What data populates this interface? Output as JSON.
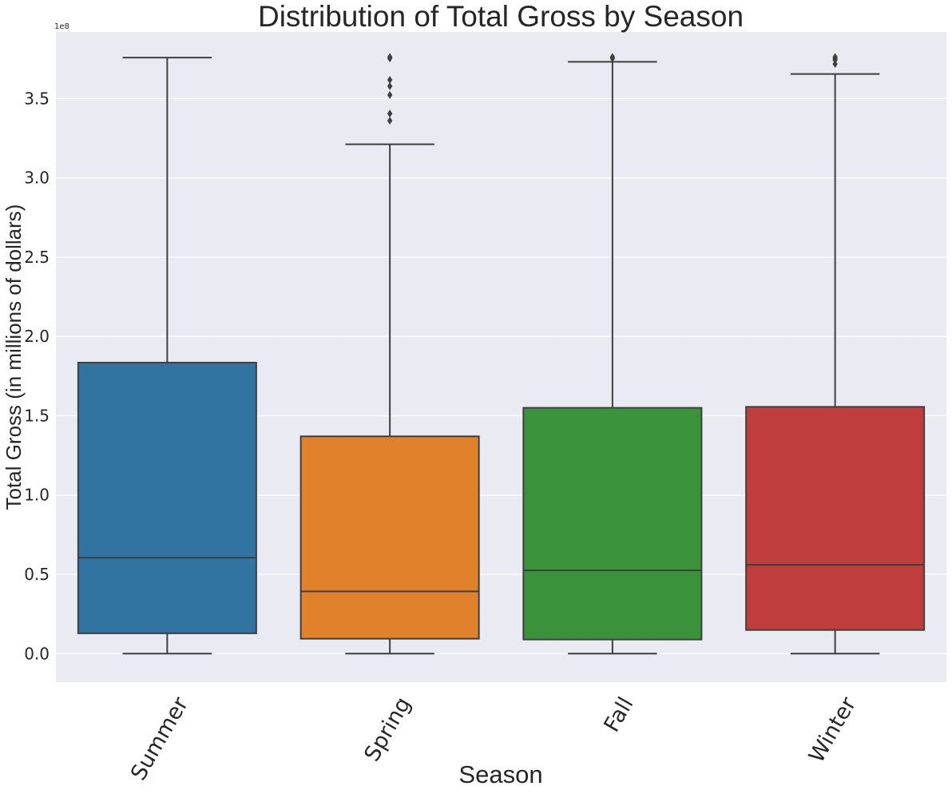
{
  "chart_data": {
    "type": "box",
    "title": "Distribution of Total Gross by Season",
    "xlabel": "Season",
    "ylabel": "Total Gross (in millions of dollars)",
    "y_offset_label": "1e8",
    "ylim": [
      -18000000,
      392000000
    ],
    "yticks": [
      0,
      50000000,
      100000000,
      150000000,
      200000000,
      250000000,
      300000000,
      350000000
    ],
    "ytick_labels": [
      "0.0",
      "0.5",
      "1.0",
      "1.5",
      "2.0",
      "2.5",
      "3.0",
      "3.5"
    ],
    "grid": true,
    "categories": [
      "Summer",
      "Spring",
      "Fall",
      "Winter"
    ],
    "boxes": [
      {
        "category": "Summer",
        "color": "#3274a1",
        "whisker_low": 0,
        "q1": 12800000,
        "median": 60500000,
        "q3": 183500000,
        "whisker_high": 375800000,
        "outliers": []
      },
      {
        "category": "Spring",
        "color": "#e1812c",
        "whisker_low": 0,
        "q1": 9400000,
        "median": 39200000,
        "q3": 137000000,
        "whisker_high": 321200000,
        "outliers": [
          336000000,
          340500000,
          352300000,
          357800000,
          361800000,
          375300000,
          376200000
        ]
      },
      {
        "category": "Fall",
        "color": "#3a923a",
        "whisker_low": 0,
        "q1": 8900000,
        "median": 52500000,
        "q3": 155000000,
        "whisker_high": 373200000,
        "outliers": [
          375300000,
          376200000
        ]
      },
      {
        "category": "Winter",
        "color": "#c03d3e",
        "whisker_low": 0,
        "q1": 14900000,
        "median": 56000000,
        "q3": 155600000,
        "whisker_high": 365500000,
        "outliers": [
          371800000,
          374300000,
          375300000,
          376200000
        ]
      }
    ],
    "colors": {
      "background": "#eaeaf2",
      "grid": "#ffffff",
      "lines": "#3f3f3f",
      "text": "#262626"
    }
  }
}
